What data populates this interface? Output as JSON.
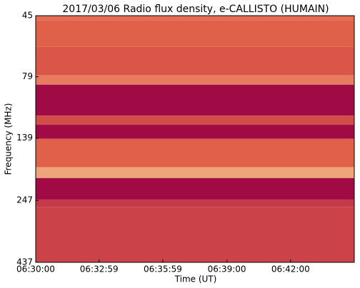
{
  "chart_data": {
    "type": "heatmap",
    "title": "2017/03/06  Radio flux density, e-CALLISTO (HUMAIN)",
    "x_label": "Time (UT)",
    "y_label": "Frequency (MHz)",
    "xlim": [
      23400,
      24300
    ],
    "xticks": [
      {
        "value": 23400,
        "label": "06:30:00"
      },
      {
        "value": 23579,
        "label": "06:32:59"
      },
      {
        "value": 23759,
        "label": "06:35:59"
      },
      {
        "value": 23940,
        "label": "06:39:00"
      },
      {
        "value": 24120,
        "label": "06:42:00"
      }
    ],
    "ylim": [
      45,
      437
    ],
    "yticks": [
      45,
      79,
      139,
      247,
      437
    ],
    "y_log": true,
    "y_inverted": true,
    "y_edges": [
      45,
      47,
      60,
      78,
      85,
      113,
      123,
      140,
      182,
      201,
      245,
      262,
      437
    ],
    "values": [
      0.55,
      0.5,
      0.45,
      0.6,
      0.05,
      0.4,
      0.05,
      0.5,
      0.75,
      0.05,
      0.3,
      0.35
    ],
    "colormap": [
      "#990044",
      "#e0604a",
      "#fde9a9"
    ]
  }
}
